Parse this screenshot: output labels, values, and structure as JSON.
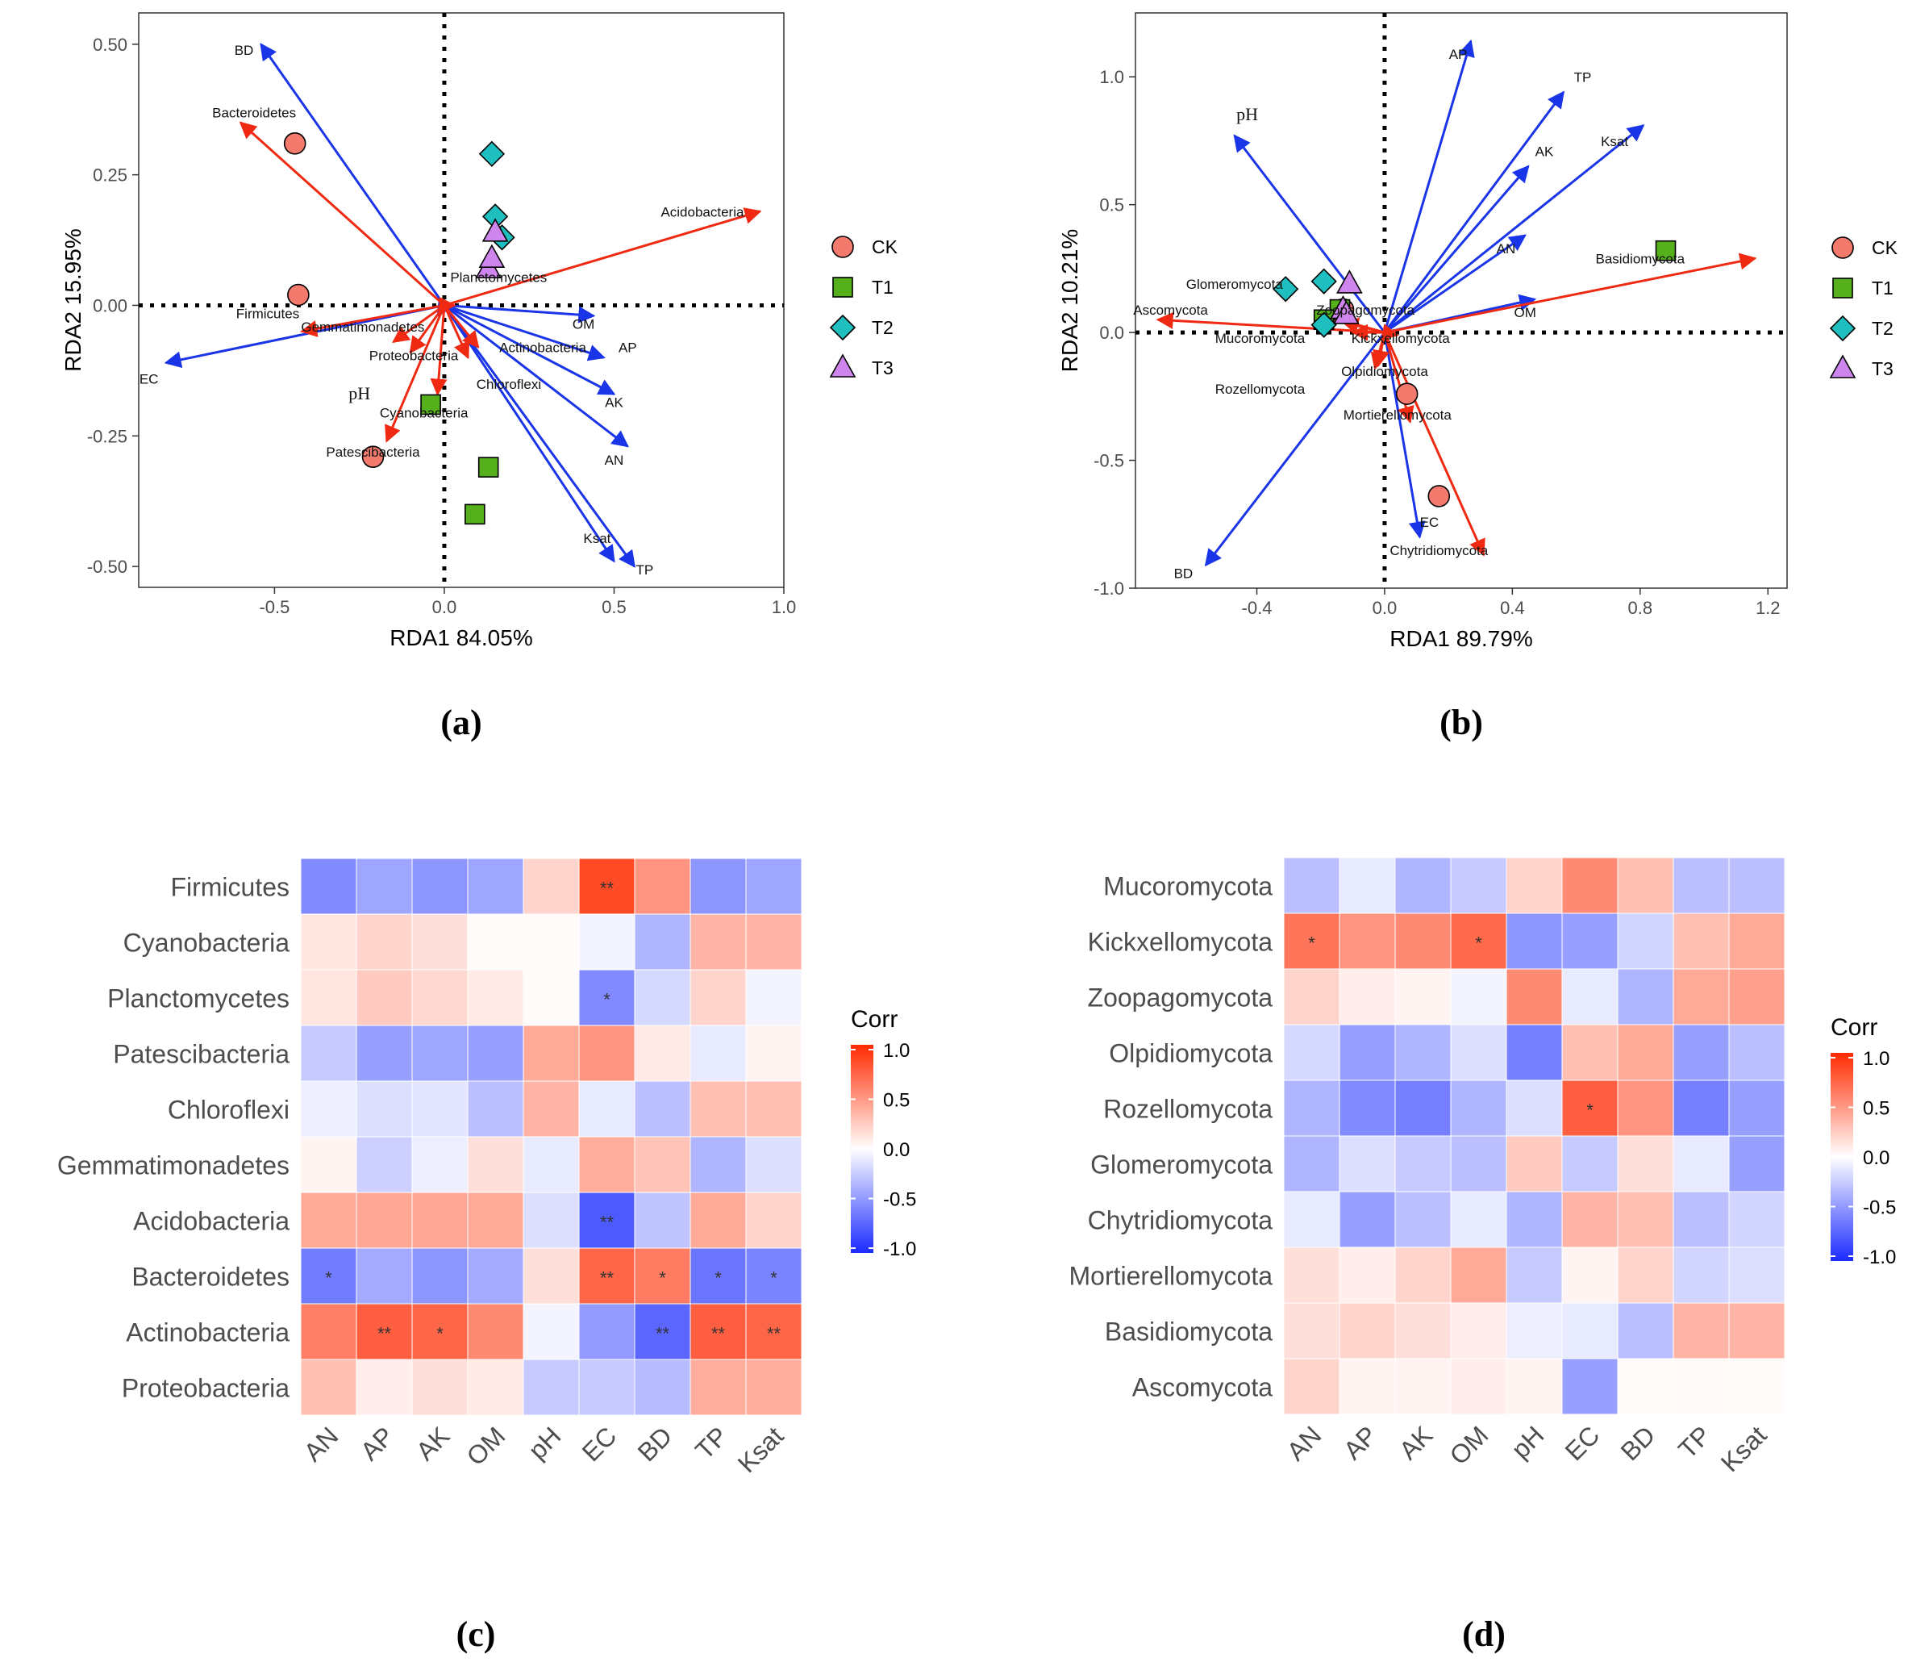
{
  "colors": {
    "env_arrow": "#1a35e8",
    "taxa_arrow": "#f02a12",
    "CK": "#f47a6e",
    "T1": "#55b01c",
    "T2": "#1fbfbf",
    "T3": "#cf85ee",
    "frame": "#333333",
    "heat_neg": "#1b2bff",
    "heat_pos": "#ff2a00"
  },
  "legend": {
    "groups": [
      {
        "key": "CK",
        "label": "CK",
        "shape": "circle"
      },
      {
        "key": "T1",
        "label": "T1",
        "shape": "square"
      },
      {
        "key": "T2",
        "label": "T2",
        "shape": "diamond"
      },
      {
        "key": "T3",
        "label": "T3",
        "shape": "triangle"
      }
    ]
  },
  "chart_data": [
    {
      "id": "a",
      "panel_label": "(a)",
      "type": "scatter",
      "subtype": "rda-biplot",
      "xlabel": "RDA1 84.05%",
      "ylabel": "RDA2 15.95%",
      "xlim": [
        -0.9,
        1.0
      ],
      "ylim": [
        -0.54,
        0.56
      ],
      "xticks": [
        -0.5,
        0.0,
        0.5,
        1.0
      ],
      "xtick_labels": [
        "-0.5",
        "0.0",
        "0.5",
        "1.0"
      ],
      "yticks": [
        -0.5,
        -0.25,
        0.0,
        0.25,
        0.5
      ],
      "ytick_labels": [
        "-0.50",
        "-0.25",
        "0.00",
        "0.25",
        "0.50"
      ],
      "env_arrows": [
        {
          "label": "BD",
          "x": -0.54,
          "y": 0.5
        },
        {
          "label": "EC",
          "x": -0.82,
          "y": -0.11
        },
        {
          "label": "pH",
          "x": -0.02,
          "y": -0.02
        },
        {
          "label": "OM",
          "x": 0.44,
          "y": -0.02
        },
        {
          "label": "AP",
          "x": 0.47,
          "y": -0.1
        },
        {
          "label": "AK",
          "x": 0.5,
          "y": -0.17
        },
        {
          "label": "AN",
          "x": 0.54,
          "y": -0.27
        },
        {
          "label": "Ksat",
          "x": 0.5,
          "y": -0.49
        },
        {
          "label": "TP",
          "x": 0.56,
          "y": -0.5
        }
      ],
      "env_labels": [
        {
          "label": "BD",
          "x": -0.59,
          "y": 0.48
        },
        {
          "label": "EC",
          "x": -0.87,
          "y": -0.15
        },
        {
          "label": "pH",
          "x": -0.25,
          "y": -0.18,
          "serif": true
        },
        {
          "label": "OM",
          "x": 0.41,
          "y": -0.045
        },
        {
          "label": "AP",
          "x": 0.54,
          "y": -0.09
        },
        {
          "label": "AK",
          "x": 0.5,
          "y": -0.195
        },
        {
          "label": "AN",
          "x": 0.5,
          "y": -0.305
        },
        {
          "label": "Ksat",
          "x": 0.45,
          "y": -0.455
        },
        {
          "label": "TP",
          "x": 0.59,
          "y": -0.515
        }
      ],
      "taxa_arrows": [
        {
          "label": "Bacteroidetes",
          "x": -0.6,
          "y": 0.35
        },
        {
          "label": "Firmicutes",
          "x": -0.42,
          "y": -0.05
        },
        {
          "label": "Gemmatimonadetes",
          "x": -0.15,
          "y": -0.07
        },
        {
          "label": "Proteobacteria",
          "x": -0.1,
          "y": -0.09
        },
        {
          "label": "Patescibacteria",
          "x": -0.17,
          "y": -0.26
        },
        {
          "label": "Cyanobacteria",
          "x": -0.02,
          "y": -0.17
        },
        {
          "label": "Actinobacteria",
          "x": 0.07,
          "y": -0.1
        },
        {
          "label": "Chloroflexi",
          "x": 0.1,
          "y": -0.08
        },
        {
          "label": "Planctomycetes",
          "x": 0.03,
          "y": 0.0
        },
        {
          "label": "Acidobacteria",
          "x": 0.93,
          "y": 0.18
        }
      ],
      "taxa_labels": [
        {
          "label": "Bacteroidetes",
          "x": -0.56,
          "y": 0.36
        },
        {
          "label": "Firmicutes",
          "x": -0.52,
          "y": -0.025
        },
        {
          "label": "Gemmatimonadetes",
          "x": -0.24,
          "y": -0.05
        },
        {
          "label": "Proteobacteria",
          "x": -0.09,
          "y": -0.105
        },
        {
          "label": "Patescibacteria",
          "x": -0.21,
          "y": -0.29
        },
        {
          "label": "Cyanobacteria",
          "x": -0.06,
          "y": -0.215
        },
        {
          "label": "Actinobacteria",
          "x": 0.29,
          "y": -0.09
        },
        {
          "label": "Chloroflexi",
          "x": 0.19,
          "y": -0.16
        },
        {
          "label": "Planctomycetes",
          "x": 0.16,
          "y": 0.045
        },
        {
          "label": "Acidobacteria",
          "x": 0.76,
          "y": 0.17
        }
      ],
      "points": [
        {
          "group": "CK",
          "x": -0.44,
          "y": 0.31
        },
        {
          "group": "CK",
          "x": -0.43,
          "y": 0.02
        },
        {
          "group": "CK",
          "x": -0.21,
          "y": -0.29
        },
        {
          "group": "T1",
          "x": -0.04,
          "y": -0.19
        },
        {
          "group": "T1",
          "x": 0.13,
          "y": -0.31
        },
        {
          "group": "T1",
          "x": 0.09,
          "y": -0.4
        },
        {
          "group": "T2",
          "x": 0.14,
          "y": 0.29
        },
        {
          "group": "T2",
          "x": 0.15,
          "y": 0.17
        },
        {
          "group": "T2",
          "x": 0.17,
          "y": 0.13
        },
        {
          "group": "T3",
          "x": 0.15,
          "y": 0.14
        },
        {
          "group": "T3",
          "x": 0.13,
          "y": 0.07
        },
        {
          "group": "T3",
          "x": 0.14,
          "y": 0.09
        }
      ]
    },
    {
      "id": "b",
      "panel_label": "(b)",
      "type": "scatter",
      "subtype": "rda-biplot",
      "xlabel": "RDA1 89.79%",
      "ylabel": "RDA2 10.21%",
      "xlim": [
        -0.78,
        1.26
      ],
      "ylim": [
        -1.0,
        1.25
      ],
      "xticks": [
        -0.4,
        0.0,
        0.4,
        0.8,
        1.2
      ],
      "xtick_labels": [
        "-0.4",
        "0.0",
        "0.4",
        "0.8",
        "1.2"
      ],
      "yticks": [
        -1.0,
        -0.5,
        0.0,
        0.5,
        1.0
      ],
      "ytick_labels": [
        "-1.0",
        "-0.5",
        "0.0",
        "0.5",
        "1.0"
      ],
      "env_arrows": [
        {
          "label": "AP",
          "x": 0.27,
          "y": 1.14
        },
        {
          "label": "TP",
          "x": 0.56,
          "y": 0.94
        },
        {
          "label": "Ksat",
          "x": 0.81,
          "y": 0.81
        },
        {
          "label": "AK",
          "x": 0.45,
          "y": 0.65
        },
        {
          "label": "AN",
          "x": 0.44,
          "y": 0.38
        },
        {
          "label": "OM",
          "x": 0.47,
          "y": 0.13
        },
        {
          "label": "pH",
          "x": -0.47,
          "y": 0.77
        },
        {
          "label": "BD",
          "x": -0.56,
          "y": -0.91
        },
        {
          "label": "EC",
          "x": 0.11,
          "y": -0.8
        }
      ],
      "env_labels": [
        {
          "label": "AP",
          "x": 0.23,
          "y": 1.07
        },
        {
          "label": "TP",
          "x": 0.62,
          "y": 0.98
        },
        {
          "label": "Ksat",
          "x": 0.72,
          "y": 0.73
        },
        {
          "label": "AK",
          "x": 0.5,
          "y": 0.69
        },
        {
          "label": "AN",
          "x": 0.38,
          "y": 0.31
        },
        {
          "label": "OM",
          "x": 0.44,
          "y": 0.06
        },
        {
          "label": "pH",
          "x": -0.43,
          "y": 0.83,
          "serif": true
        },
        {
          "label": "BD",
          "x": -0.63,
          "y": -0.96
        },
        {
          "label": "EC",
          "x": 0.14,
          "y": -0.76
        }
      ],
      "taxa_arrows": [
        {
          "label": "Basidiomycota",
          "x": 1.16,
          "y": 0.29
        },
        {
          "label": "Ascomycota",
          "x": -0.71,
          "y": 0.05
        },
        {
          "label": "Glomeromycota",
          "x": -0.2,
          "y": 0.07
        },
        {
          "label": "Zoopagomycota",
          "x": -0.13,
          "y": 0.04
        },
        {
          "label": "Mucoromycota",
          "x": -0.1,
          "y": 0.0
        },
        {
          "label": "Kickxellomycota",
          "x": 0.04,
          "y": -0.01
        },
        {
          "label": "Olpidiomycota",
          "x": -0.02,
          "y": -0.13
        },
        {
          "label": "Rozellomycota",
          "x": -0.03,
          "y": -0.14
        },
        {
          "label": "Mortierellomycota",
          "x": 0.08,
          "y": -0.35
        },
        {
          "label": "Chytridiomycota",
          "x": 0.31,
          "y": -0.87
        }
      ],
      "taxa_labels": [
        {
          "label": "Basidiomycota",
          "x": 0.8,
          "y": 0.27
        },
        {
          "label": "Ascomycota",
          "x": -0.67,
          "y": 0.07
        },
        {
          "label": "Glomeromycota",
          "x": -0.47,
          "y": 0.17
        },
        {
          "label": "Zoopagomycota",
          "x": -0.06,
          "y": 0.07
        },
        {
          "label": "Mucoromycota",
          "x": -0.39,
          "y": -0.04
        },
        {
          "label": "Kickxellomycota",
          "x": 0.05,
          "y": -0.04
        },
        {
          "label": "Olpidiomycota",
          "x": 0.0,
          "y": -0.17
        },
        {
          "label": "Rozellomycota",
          "x": -0.39,
          "y": -0.24
        },
        {
          "label": "Mortierellomycota",
          "x": 0.04,
          "y": -0.34
        },
        {
          "label": "Chytridiomycota",
          "x": 0.17,
          "y": -0.87
        }
      ],
      "points": [
        {
          "group": "CK",
          "x": -0.13,
          "y": 0.09
        },
        {
          "group": "CK",
          "x": 0.07,
          "y": -0.24
        },
        {
          "group": "CK",
          "x": 0.17,
          "y": -0.64
        },
        {
          "group": "T1",
          "x": 0.88,
          "y": 0.32
        },
        {
          "group": "T1",
          "x": -0.14,
          "y": 0.09
        },
        {
          "group": "T1",
          "x": -0.19,
          "y": 0.05
        },
        {
          "group": "T2",
          "x": -0.31,
          "y": 0.17
        },
        {
          "group": "T2",
          "x": -0.19,
          "y": 0.2
        },
        {
          "group": "T2",
          "x": -0.19,
          "y": 0.03
        },
        {
          "group": "T3",
          "x": -0.11,
          "y": 0.19
        },
        {
          "group": "T3",
          "x": -0.13,
          "y": 0.09
        },
        {
          "group": "T3",
          "x": -0.12,
          "y": 0.07
        }
      ]
    },
    {
      "id": "c",
      "panel_label": "(c)",
      "type": "heatmap",
      "legend_title": "Corr",
      "scale": [
        -1.0,
        1.0
      ],
      "scale_ticks": [
        "1.0",
        "0.5",
        "0.0",
        "-0.5",
        "-1.0"
      ],
      "columns": [
        "AN",
        "AP",
        "AK",
        "OM",
        "pH",
        "EC",
        "BD",
        "TP",
        "Ksat"
      ],
      "rows": [
        "Firmicutes",
        "Cyanobacteria",
        "Planctomycetes",
        "Patescibacteria",
        "Chloroflexi",
        "Gemmatimonadetes",
        "Acidobacteria",
        "Bacteroidetes",
        "Actinobacteria",
        "Proteobacteria"
      ],
      "values": [
        [
          -0.55,
          -0.42,
          -0.5,
          -0.42,
          0.2,
          0.85,
          0.5,
          -0.5,
          -0.42
        ],
        [
          0.12,
          0.2,
          0.15,
          0.02,
          0.02,
          -0.05,
          -0.35,
          0.35,
          0.35
        ],
        [
          0.12,
          0.25,
          0.18,
          0.1,
          0.02,
          -0.55,
          -0.18,
          0.2,
          -0.05
        ],
        [
          -0.25,
          -0.45,
          -0.42,
          -0.45,
          0.4,
          0.5,
          0.1,
          -0.1,
          0.05
        ],
        [
          -0.08,
          -0.15,
          -0.12,
          -0.3,
          0.35,
          -0.1,
          -0.3,
          0.3,
          0.3
        ],
        [
          0.05,
          -0.22,
          -0.08,
          0.15,
          -0.1,
          0.38,
          0.28,
          -0.35,
          -0.15
        ],
        [
          0.4,
          0.42,
          0.42,
          0.4,
          -0.15,
          -0.78,
          -0.28,
          0.4,
          0.2
        ],
        [
          -0.62,
          -0.4,
          -0.5,
          -0.4,
          0.15,
          0.72,
          0.62,
          -0.65,
          -0.58
        ],
        [
          0.6,
          0.75,
          0.72,
          0.55,
          -0.05,
          -0.48,
          -0.72,
          0.75,
          0.72
        ],
        [
          0.3,
          0.08,
          0.15,
          0.1,
          -0.25,
          -0.25,
          -0.32,
          0.38,
          0.38
        ]
      ],
      "marks": [
        [
          "",
          "",
          "",
          "",
          "",
          "**",
          "",
          "",
          ""
        ],
        [
          "",
          "",
          "",
          "",
          "",
          "",
          "",
          "",
          ""
        ],
        [
          "",
          "",
          "",
          "",
          "",
          "*",
          "",
          "",
          ""
        ],
        [
          "",
          "",
          "",
          "",
          "",
          "",
          "",
          "",
          ""
        ],
        [
          "",
          "",
          "",
          "",
          "",
          "",
          "",
          "",
          ""
        ],
        [
          "",
          "",
          "",
          "",
          "",
          "",
          "",
          "",
          ""
        ],
        [
          "",
          "",
          "",
          "",
          "",
          "**",
          "",
          "",
          ""
        ],
        [
          "*",
          "",
          "",
          "",
          "",
          "**",
          "*",
          "*",
          "*"
        ],
        [
          "",
          "**",
          "*",
          "",
          "",
          "",
          "**",
          "**",
          "**"
        ],
        [
          "",
          "",
          "",
          "",
          "",
          "",
          "",
          "",
          ""
        ]
      ]
    },
    {
      "id": "d",
      "panel_label": "(d)",
      "type": "heatmap",
      "legend_title": "Corr",
      "scale": [
        -1.0,
        1.0
      ],
      "scale_ticks": [
        "1.0",
        "0.5",
        "0.0",
        "-0.5",
        "-1.0"
      ],
      "columns": [
        "AN",
        "AP",
        "AK",
        "OM",
        "pH",
        "EC",
        "BD",
        "TP",
        "Ksat"
      ],
      "rows": [
        "Mucoromycota",
        "Kickxellomycota",
        "Zoopagomycota",
        "Olpidiomycota",
        "Rozellomycota",
        "Glomeromycota",
        "Chytridiomycota",
        "Mortierellomycota",
        "Basidiomycota",
        "Ascomycota"
      ],
      "values": [
        [
          -0.3,
          -0.1,
          -0.35,
          -0.25,
          0.2,
          0.55,
          0.3,
          -0.3,
          -0.3
        ],
        [
          0.65,
          0.5,
          0.55,
          0.7,
          -0.5,
          -0.45,
          -0.2,
          0.3,
          0.4
        ],
        [
          0.2,
          0.08,
          0.05,
          -0.05,
          0.55,
          -0.1,
          -0.35,
          0.4,
          0.45
        ],
        [
          -0.18,
          -0.45,
          -0.35,
          -0.15,
          -0.6,
          0.3,
          0.4,
          -0.45,
          -0.3
        ],
        [
          -0.35,
          -0.55,
          -0.6,
          -0.35,
          -0.15,
          0.75,
          0.5,
          -0.6,
          -0.45
        ],
        [
          -0.35,
          -0.15,
          -0.25,
          -0.3,
          0.25,
          -0.25,
          0.15,
          -0.1,
          -0.45
        ],
        [
          -0.1,
          -0.45,
          -0.3,
          -0.1,
          -0.35,
          0.35,
          0.3,
          -0.3,
          -0.2
        ],
        [
          0.15,
          0.08,
          0.2,
          0.4,
          -0.25,
          0.05,
          0.2,
          -0.2,
          -0.15
        ],
        [
          0.15,
          0.2,
          0.15,
          0.08,
          -0.08,
          -0.1,
          -0.3,
          0.35,
          0.35
        ],
        [
          0.2,
          0.05,
          0.05,
          0.08,
          0.05,
          -0.45,
          0.02,
          0.03,
          0.02
        ]
      ],
      "marks": [
        [
          "",
          "",
          "",
          "",
          "",
          "",
          "",
          "",
          ""
        ],
        [
          "*",
          "",
          "",
          "*",
          "",
          "",
          "",
          "",
          ""
        ],
        [
          "",
          "",
          "",
          "",
          "",
          "",
          "",
          "",
          ""
        ],
        [
          "",
          "",
          "",
          "",
          "",
          "",
          "",
          "",
          ""
        ],
        [
          "",
          "",
          "",
          "",
          "",
          "*",
          "",
          "",
          ""
        ],
        [
          "",
          "",
          "",
          "",
          "",
          "",
          "",
          "",
          ""
        ],
        [
          "",
          "",
          "",
          "",
          "",
          "",
          "",
          "",
          ""
        ],
        [
          "",
          "",
          "",
          "",
          "",
          "",
          "",
          "",
          ""
        ],
        [
          "",
          "",
          "",
          "",
          "",
          "",
          "",
          "",
          ""
        ],
        [
          "",
          "",
          "",
          "",
          "",
          "",
          "",
          "",
          ""
        ]
      ]
    }
  ]
}
